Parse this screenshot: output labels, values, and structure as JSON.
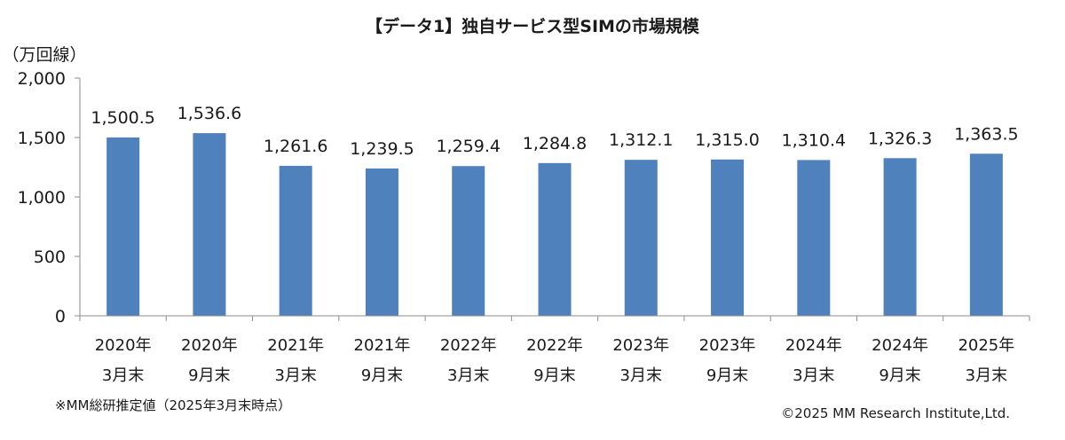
{
  "chart_data": {
    "type": "bar",
    "title": "【データ1】独自サービス型SIMの市場規模",
    "ylabel": "（万回線）",
    "ylim": [
      0,
      2000
    ],
    "yticks": [
      0,
      500,
      1000,
      1500,
      2000
    ],
    "ytick_labels": [
      "0",
      "500",
      "1,000",
      "1,500",
      "2,000"
    ],
    "categories": [
      [
        "2020年",
        "3月末"
      ],
      [
        "2020年",
        "9月末"
      ],
      [
        "2021年",
        "3月末"
      ],
      [
        "2021年",
        "9月末"
      ],
      [
        "2022年",
        "3月末"
      ],
      [
        "2022年",
        "9月末"
      ],
      [
        "2023年",
        "3月末"
      ],
      [
        "2023年",
        "9月末"
      ],
      [
        "2024年",
        "3月末"
      ],
      [
        "2024年",
        "9月末"
      ],
      [
        "2025年",
        "3月末"
      ]
    ],
    "values": [
      1500.5,
      1536.6,
      1261.6,
      1239.5,
      1259.4,
      1284.8,
      1312.1,
      1315.0,
      1310.4,
      1326.3,
      1363.5
    ],
    "data_labels": [
      "1,500.5",
      "1,536.6",
      "1,261.6",
      "1,239.5",
      "1,259.4",
      "1,284.8",
      "1,312.1",
      "1,315.0",
      "1,310.4",
      "1,326.3",
      "1,363.5"
    ],
    "bar_color": "#4f81bd",
    "grid": false,
    "legend": "none"
  },
  "notes": {
    "estimate": "※MM総研推定値（2025年3月末時点）",
    "credit": "©2025 MM Research Institute,Ltd."
  }
}
